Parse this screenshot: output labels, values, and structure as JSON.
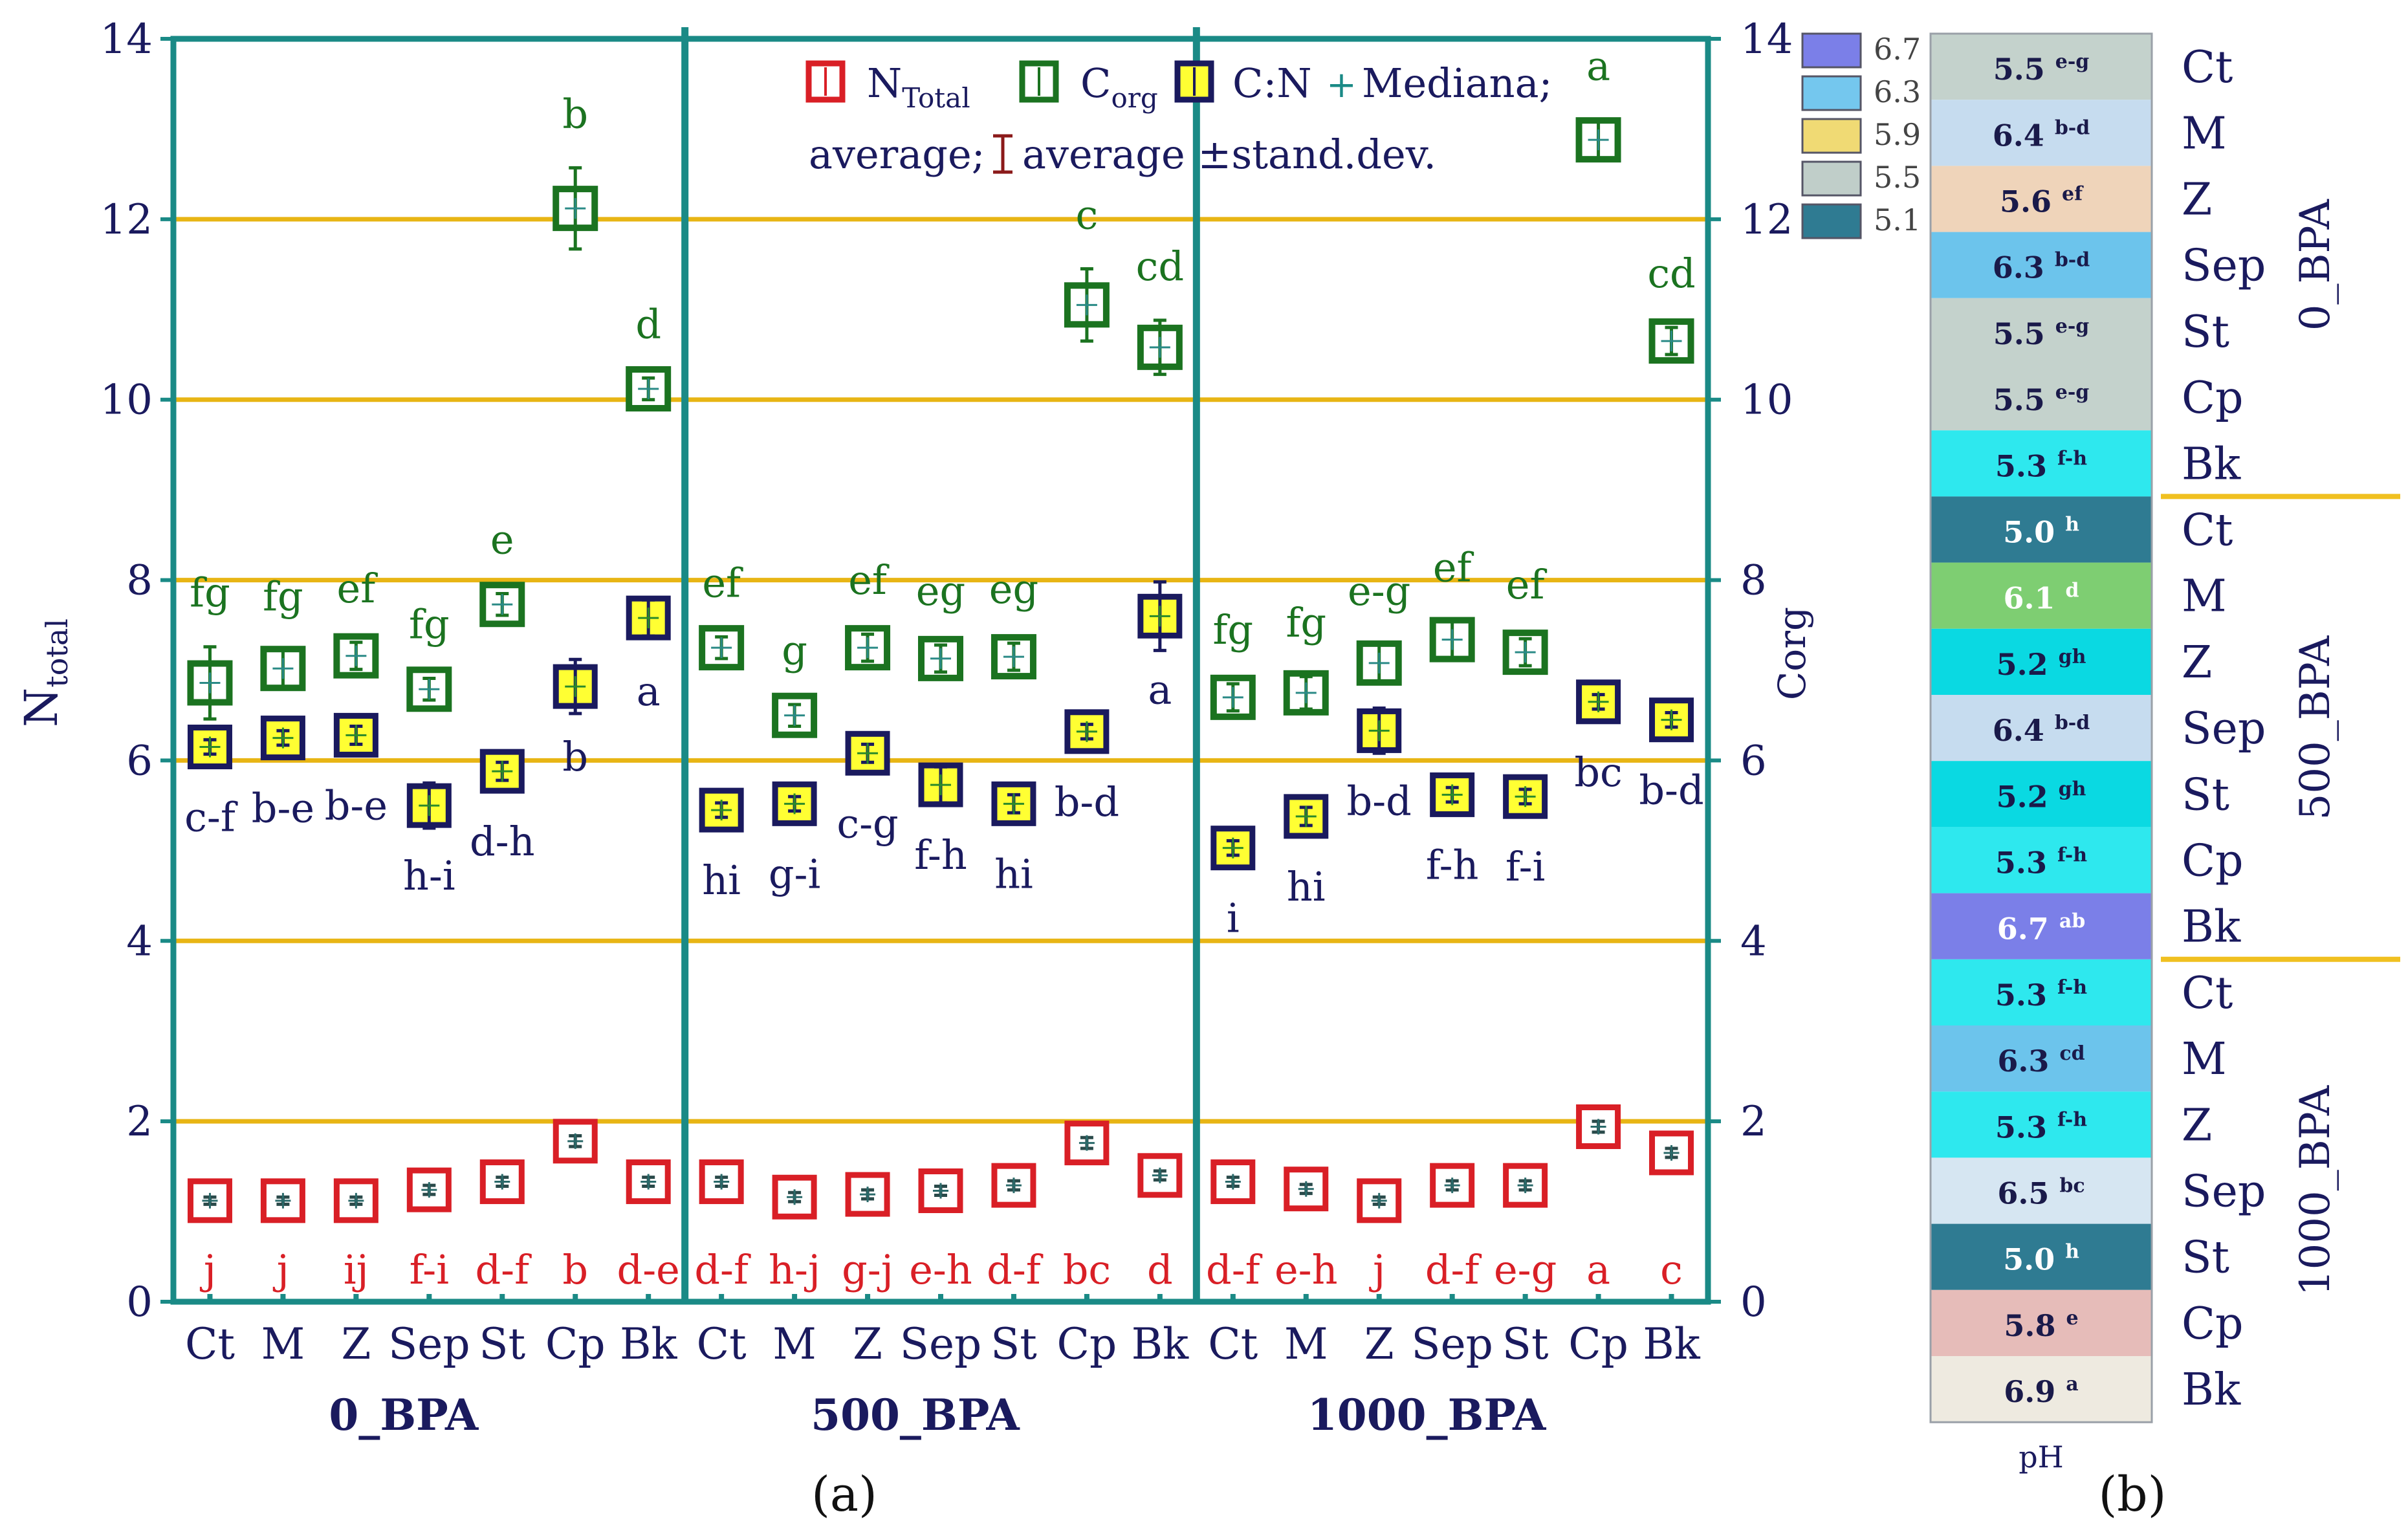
{
  "chart_data": [
    {
      "panel": "a",
      "type": "scatter",
      "subtitle": "(a)",
      "y_left_label": {
        "main": "N",
        "sub": "total"
      },
      "y_right_label": "Corg",
      "ylim": [
        0,
        14
      ],
      "yticks": [
        0,
        2,
        4,
        6,
        8,
        10,
        12,
        14
      ],
      "gridlines": [
        2,
        4,
        6,
        8,
        10,
        12
      ],
      "groups": [
        "0_BPA",
        "500_BPA",
        "1000_BPA"
      ],
      "categories": [
        "Ct",
        "M",
        "Z",
        "Sep",
        "St",
        "Cp",
        "Bk"
      ],
      "legend": {
        "ntotal": {
          "main": "N",
          "sub": "Total"
        },
        "corg": {
          "main": "C",
          "sub": "org"
        },
        "cn": "C:N",
        "median": "Mediana;",
        "average": "average;",
        "sd": "average ±stand.dev."
      },
      "series": [
        {
          "name": "N_Total",
          "color": "#d91f26",
          "values": [
            1.12,
            1.12,
            1.12,
            1.24,
            1.33,
            1.78,
            1.33,
            1.33,
            1.16,
            1.19,
            1.23,
            1.29,
            1.76,
            1.4,
            1.33,
            1.25,
            1.12,
            1.29,
            1.29,
            1.94,
            1.65
          ],
          "sd": [
            0.04,
            0.04,
            0.04,
            0.05,
            0.05,
            0.06,
            0.05,
            0.05,
            0.05,
            0.05,
            0.05,
            0.05,
            0.06,
            0.05,
            0.05,
            0.05,
            0.04,
            0.05,
            0.05,
            0.06,
            0.05
          ],
          "letters": [
            "j",
            "j",
            "ij",
            "f-i",
            "d-f",
            "b",
            "d-e",
            "d-f",
            "h-j",
            "g-j",
            "e-h",
            "d-f",
            "bc",
            "d",
            "d-f",
            "e-h",
            "j",
            "d-f",
            "e-g",
            "a",
            "c"
          ]
        },
        {
          "name": "C_org",
          "color": "#1b7320",
          "values": [
            6.86,
            7.02,
            7.16,
            6.79,
            7.73,
            12.12,
            10.12,
            7.25,
            6.5,
            7.25,
            7.13,
            7.15,
            11.05,
            10.58,
            6.7,
            6.75,
            7.08,
            7.34,
            7.2,
            12.88,
            10.65
          ],
          "sd": [
            0.4,
            0.2,
            0.15,
            0.12,
            0.12,
            0.45,
            0.12,
            0.12,
            0.12,
            0.15,
            0.15,
            0.15,
            0.4,
            0.3,
            0.15,
            0.18,
            0.2,
            0.2,
            0.15,
            0.22,
            0.15
          ],
          "letters": [
            "fg",
            "fg",
            "ef",
            "fg",
            "e",
            "b",
            "d",
            "ef",
            "g",
            "ef",
            "eg",
            "eg",
            "c",
            "cd",
            "fg",
            "fg",
            "e-g",
            "ef",
            "ef",
            "a",
            "cd"
          ]
        },
        {
          "name": "C:N",
          "color": "#1a1a5e",
          "values": [
            6.15,
            6.25,
            6.28,
            5.5,
            5.88,
            6.82,
            7.58,
            5.45,
            5.52,
            6.08,
            5.73,
            5.52,
            6.32,
            7.6,
            5.03,
            5.38,
            6.33,
            5.62,
            5.6,
            6.65,
            6.45
          ],
          "sd": [
            0.08,
            0.08,
            0.1,
            0.25,
            0.1,
            0.3,
            0.2,
            0.08,
            0.08,
            0.1,
            0.2,
            0.1,
            0.08,
            0.38,
            0.08,
            0.1,
            0.25,
            0.08,
            0.08,
            0.08,
            0.08
          ],
          "letters": [
            "c-f",
            "b-e",
            "b-e",
            "h-i",
            "d-h",
            "b",
            "a",
            "hi",
            "g-i",
            "c-g",
            "f-h",
            "hi",
            "b-d",
            "a",
            "i",
            "hi",
            "b-d",
            "f-h",
            "f-i",
            "bc",
            "b-d"
          ]
        }
      ]
    },
    {
      "panel": "b",
      "type": "heatmap",
      "subtitle": "(b)",
      "xlabel": "pH",
      "legend": [
        {
          "label": "6.7",
          "color": "#7b7fe8"
        },
        {
          "label": "6.3",
          "color": "#74c7ee"
        },
        {
          "label": "5.9",
          "color": "#f0da74"
        },
        {
          "label": "5.5",
          "color": "#c0cec9"
        },
        {
          "label": "5.1",
          "color": "#2f7b92"
        }
      ],
      "groups": [
        "0_BPA",
        "500_BPA",
        "1000_BPA"
      ],
      "rows": [
        {
          "treatment": "Ct",
          "value": "5.5",
          "letters": "e-g",
          "color": "#c4d2cc",
          "text_color": "#1a1a4a"
        },
        {
          "treatment": "M",
          "value": "6.4",
          "letters": "b-d",
          "color": "#c6dcef",
          "text_color": "#1a1a4a"
        },
        {
          "treatment": "Z",
          "value": "5.6",
          "letters": "ef",
          "color": "#efd4ba",
          "text_color": "#1a1a4a"
        },
        {
          "treatment": "Sep",
          "value": "6.3",
          "letters": "b-d",
          "color": "#6cc4ec",
          "text_color": "#1a1a4a"
        },
        {
          "treatment": "St",
          "value": "5.5",
          "letters": "e-g",
          "color": "#c4d2cc",
          "text_color": "#1a1a4a"
        },
        {
          "treatment": "Cp",
          "value": "5.5",
          "letters": "e-g",
          "color": "#c4d2cc",
          "text_color": "#1a1a4a"
        },
        {
          "treatment": "Bk",
          "value": "5.3",
          "letters": "f-h",
          "color": "#2ee8ee",
          "text_color": "#1a1a4a"
        },
        {
          "treatment": "Ct",
          "value": "5.0",
          "letters": "h",
          "color": "#2f7b92",
          "text_color": "#ffffff"
        },
        {
          "treatment": "M",
          "value": "6.1",
          "letters": "d",
          "color": "#7ece72",
          "text_color": "#ffffff"
        },
        {
          "treatment": "Z",
          "value": "5.2",
          "letters": "gh",
          "color": "#0ad9e2",
          "text_color": "#1a1a4a"
        },
        {
          "treatment": "Sep",
          "value": "6.4",
          "letters": "b-d",
          "color": "#c6dcef",
          "text_color": "#1a1a4a"
        },
        {
          "treatment": "St",
          "value": "5.2",
          "letters": "gh",
          "color": "#0ad9e2",
          "text_color": "#1a1a4a"
        },
        {
          "treatment": "Cp",
          "value": "5.3",
          "letters": "f-h",
          "color": "#2ee8ee",
          "text_color": "#1a1a4a"
        },
        {
          "treatment": "Bk",
          "value": "6.7",
          "letters": "ab",
          "color": "#7b7fe8",
          "text_color": "#ffffff"
        },
        {
          "treatment": "Ct",
          "value": "5.3",
          "letters": "f-h",
          "color": "#2ee8ee",
          "text_color": "#1a1a4a"
        },
        {
          "treatment": "M",
          "value": "6.3",
          "letters": "cd",
          "color": "#6cc4ec",
          "text_color": "#1a1a4a"
        },
        {
          "treatment": "Z",
          "value": "5.3",
          "letters": "f-h",
          "color": "#2ee8ee",
          "text_color": "#1a1a4a"
        },
        {
          "treatment": "Sep",
          "value": "6.5",
          "letters": "bc",
          "color": "#d6e6f2",
          "text_color": "#1a1a4a"
        },
        {
          "treatment": "St",
          "value": "5.0",
          "letters": "h",
          "color": "#2f7b92",
          "text_color": "#ffffff"
        },
        {
          "treatment": "Cp",
          "value": "5.8",
          "letters": "e",
          "color": "#e6bcb9",
          "text_color": "#1a1a4a"
        },
        {
          "treatment": "Bk",
          "value": "6.9",
          "letters": "a",
          "color": "#eeeae0",
          "text_color": "#1a1a4a"
        }
      ]
    }
  ]
}
